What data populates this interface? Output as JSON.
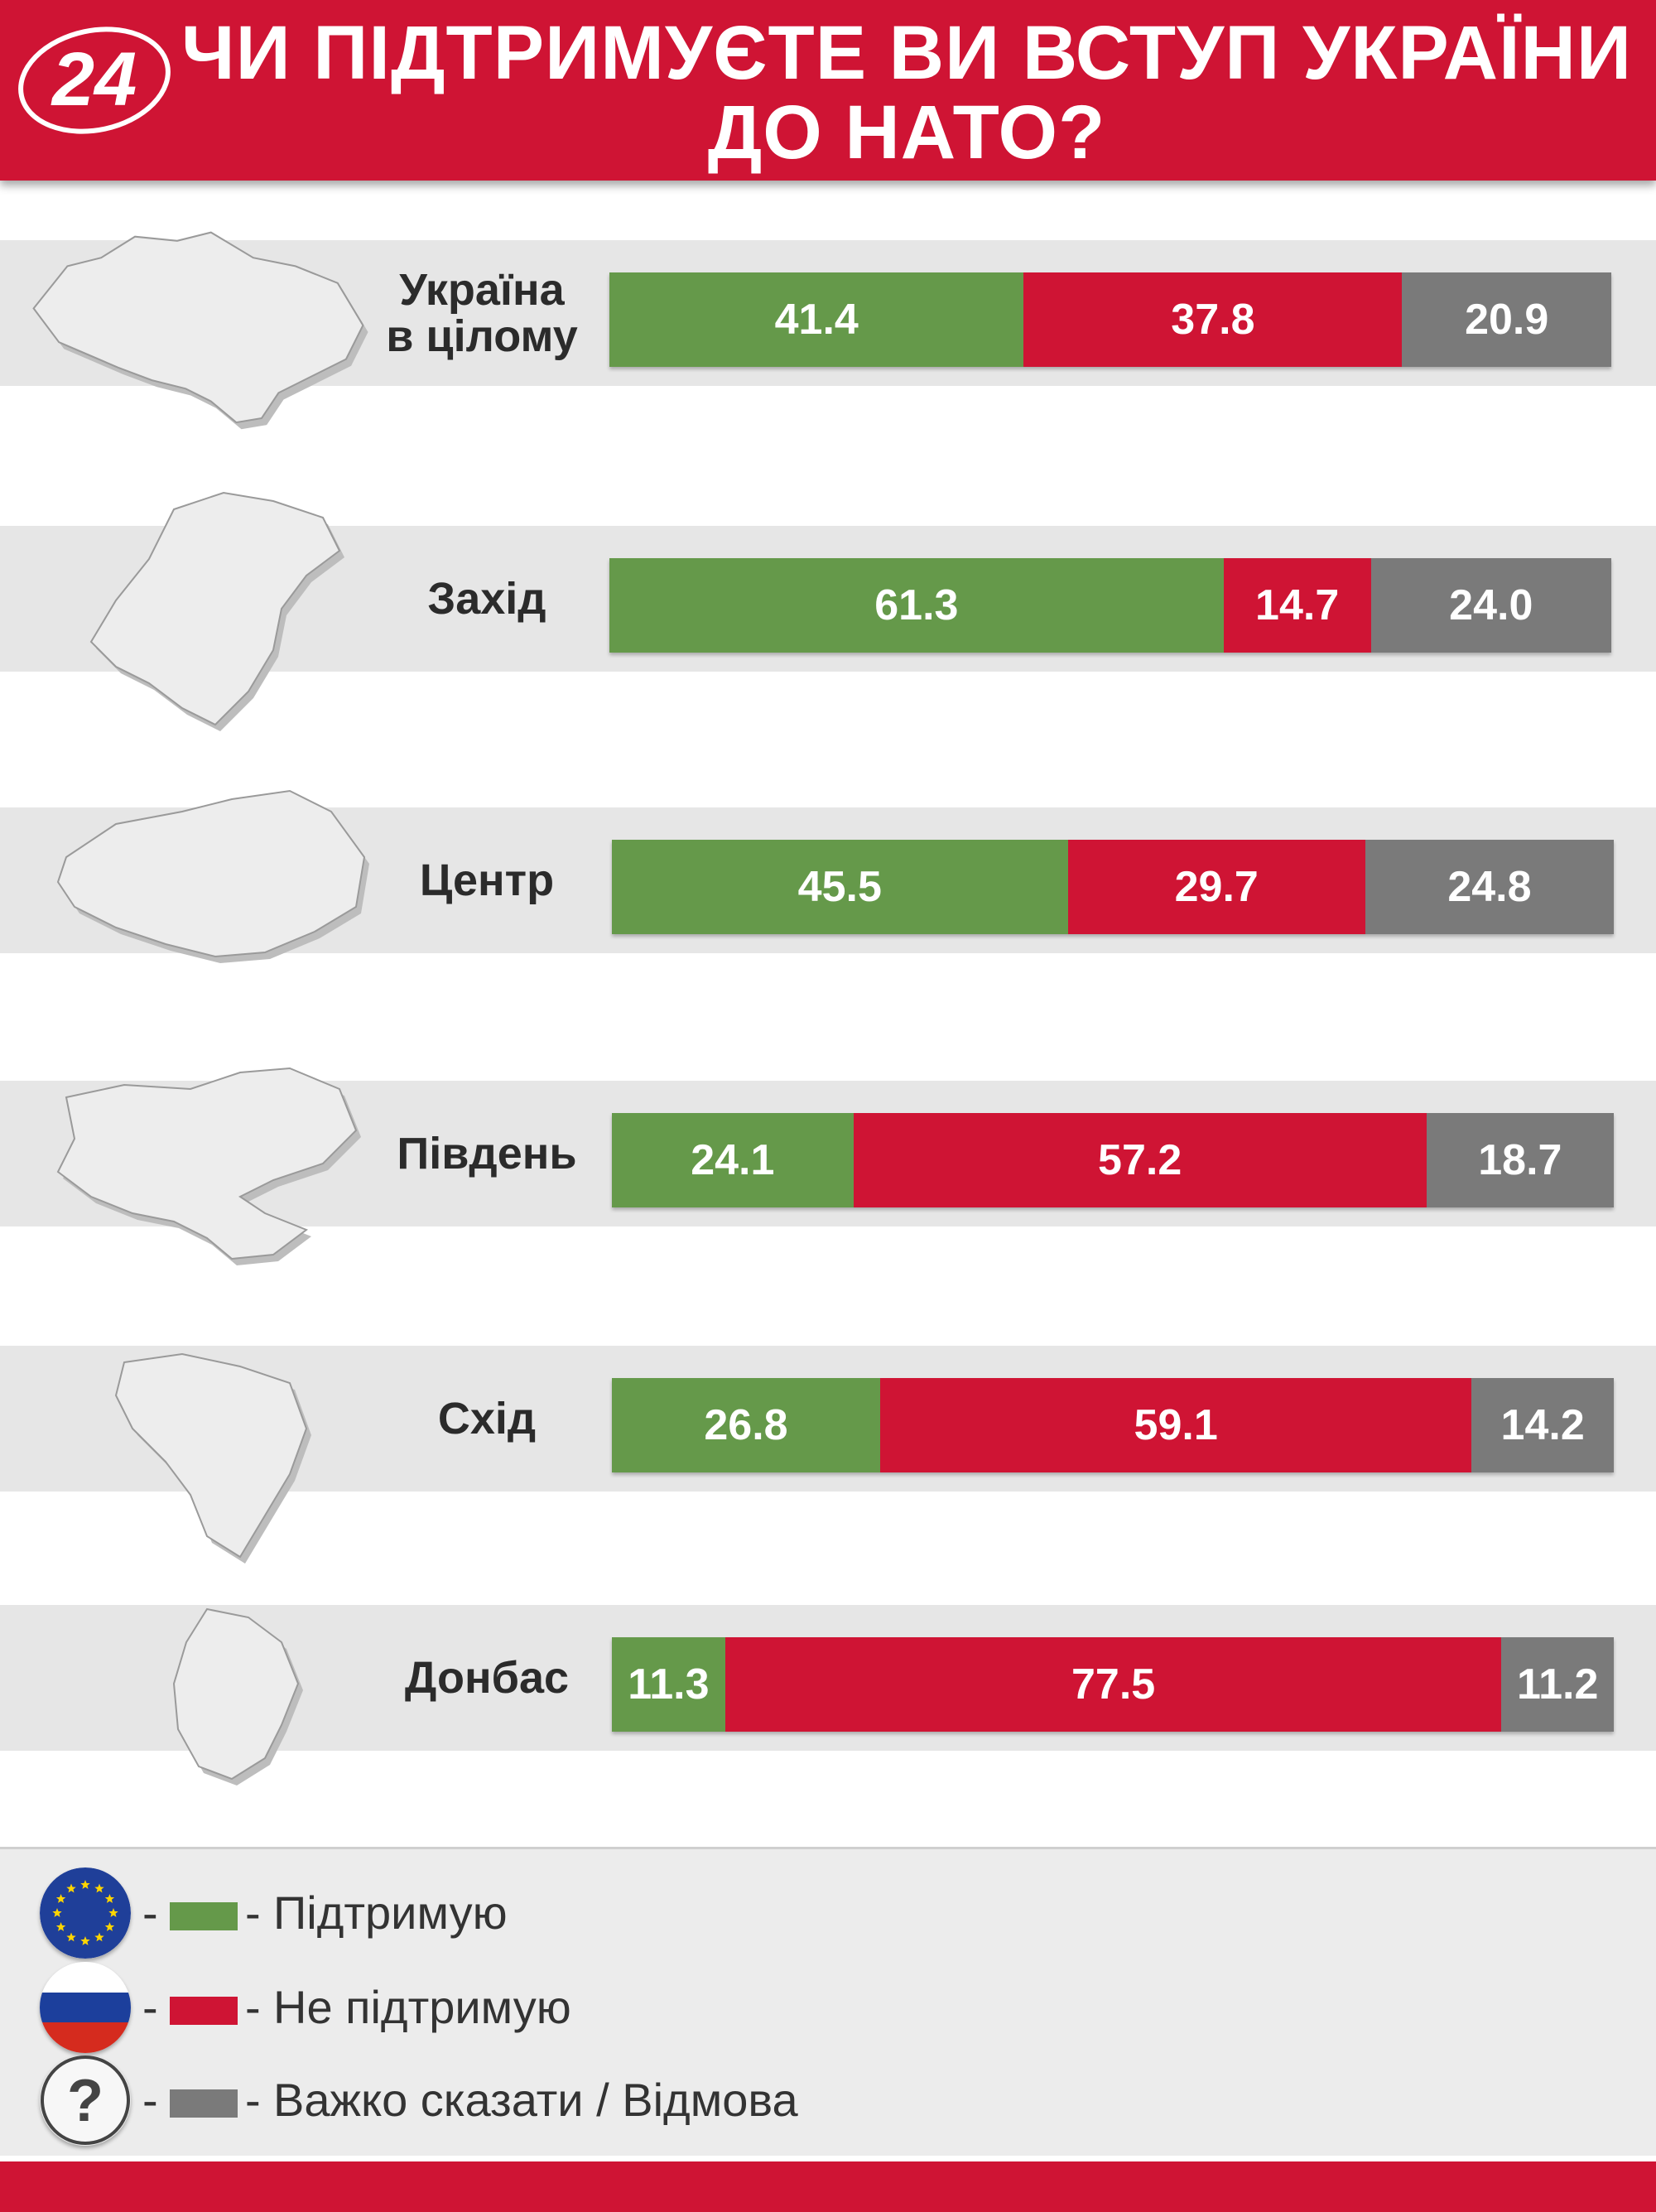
{
  "header": {
    "logo_text": "24",
    "title_line1": "Чи підтримуєте ви вступ України",
    "title_line2": "до НАТО?"
  },
  "colors": {
    "support": "#65994a",
    "oppose": "#cf1434",
    "undecided": "#7a7a7a",
    "header": "#cf1434"
  },
  "chart_data": {
    "type": "bar",
    "orientation": "horizontal-stacked-100",
    "title": "Чи підтримуєте ви вступ України до НАТО?",
    "categories": [
      "Україна в цілому",
      "Захід",
      "Центр",
      "Південь",
      "Схід",
      "Донбас"
    ],
    "category_lines": [
      [
        "Україна",
        "в цілому"
      ],
      [
        "Захід"
      ],
      [
        "Центр"
      ],
      [
        "Південь"
      ],
      [
        "Схід"
      ],
      [
        "Донбас"
      ]
    ],
    "series": [
      {
        "name": "Підтримую",
        "color": "#65994a",
        "values": [
          41.4,
          61.3,
          45.5,
          24.1,
          26.8,
          11.3
        ],
        "labels": [
          "41.4",
          "61.3",
          "45.5",
          "24.1",
          "26.8",
          "11.3"
        ]
      },
      {
        "name": "Не підтримую",
        "color": "#cf1434",
        "values": [
          37.8,
          14.7,
          29.7,
          57.2,
          59.1,
          77.5
        ],
        "labels": [
          "37.8",
          "14.7",
          "29.7",
          "57.2",
          "59.1",
          "77.5"
        ]
      },
      {
        "name": "Важко сказати / Відмова",
        "color": "#7a7a7a",
        "values": [
          20.9,
          24.0,
          24.8,
          18.7,
          14.2,
          11.2
        ],
        "labels": [
          "20.9",
          "24.0",
          "24.8",
          "18.7",
          "14.2",
          "11.2"
        ]
      }
    ],
    "xlabel": "",
    "ylabel": ""
  },
  "legend": {
    "items": [
      {
        "icon": "eu-flag-icon",
        "dash": "-",
        "dash2": "-",
        "label": "Підтримую",
        "color": "#65994a"
      },
      {
        "icon": "russia-flag-icon",
        "dash": "-",
        "dash2": "-",
        "label": "Не підтримую",
        "color": "#cf1434"
      },
      {
        "icon": "question-icon",
        "dash": "-",
        "dash2": "-",
        "label": "Важко сказати / Відмова",
        "color": "#7a7a7a",
        "symbol": "?"
      }
    ]
  }
}
